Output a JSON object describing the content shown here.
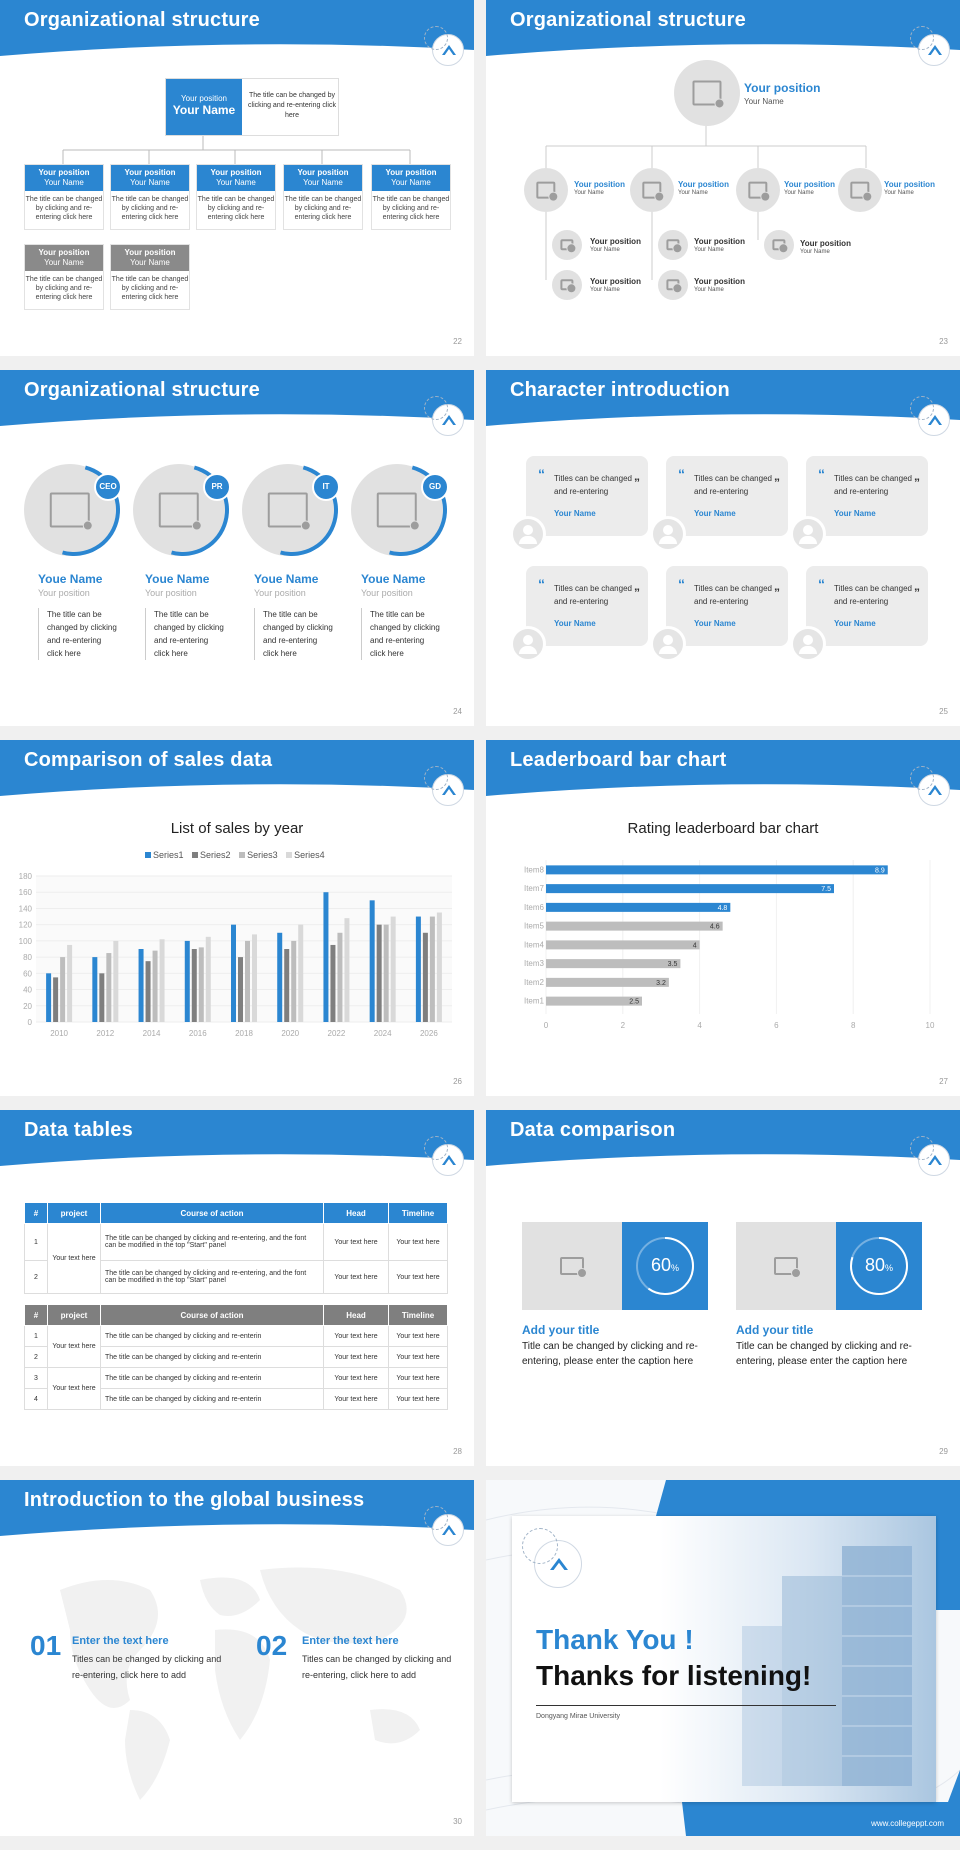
{
  "slides": [
    {
      "title": "Organizational structure",
      "page": "22"
    },
    {
      "title": "Organizational structure",
      "page": "23"
    },
    {
      "title": "Organizational structure",
      "page": "24"
    },
    {
      "title": "Character introduction",
      "page": "25"
    },
    {
      "title": "Comparison of sales data",
      "page": "26"
    },
    {
      "title": "Leaderboard bar chart",
      "page": "27"
    },
    {
      "title": "Data tables",
      "page": "28"
    },
    {
      "title": "Data comparison",
      "page": "29"
    },
    {
      "title": "Introduction to the global business",
      "page": "30"
    }
  ],
  "org1": {
    "top_position": "Your position",
    "top_name": "Your Name",
    "top_desc": "The title can be changed by clicking and re-entering click here",
    "card_position": "Your position",
    "card_name": "Your Name",
    "card_desc": "The title can be changed by clicking and re-entering click here"
  },
  "org2": {
    "position": "Your position",
    "name": "Your Name"
  },
  "org3": {
    "tags": [
      "CEO",
      "PR",
      "IT",
      "GD"
    ],
    "name": "Youe Name",
    "position": "Your position",
    "desc": "The title can be changed by clicking and re-entering click here"
  },
  "characters": {
    "quote": "Titles can be changed and re-entering",
    "name": "Your Name"
  },
  "chart_data": [
    {
      "type": "bar",
      "title": "List of sales by year",
      "categories": [
        "2010",
        "2012",
        "2014",
        "2016",
        "2018",
        "2020",
        "2022",
        "2024",
        "2026"
      ],
      "series": [
        {
          "name": "Series1",
          "color": "#2b86d1",
          "values": [
            60,
            80,
            90,
            100,
            120,
            110,
            160,
            150,
            130
          ]
        },
        {
          "name": "Series2",
          "color": "#7f7f7f",
          "values": [
            55,
            60,
            75,
            90,
            80,
            90,
            95,
            120,
            110
          ]
        },
        {
          "name": "Series3",
          "color": "#bdbdbd",
          "values": [
            80,
            85,
            88,
            92,
            100,
            100,
            110,
            120,
            130
          ]
        },
        {
          "name": "Series4",
          "color": "#d9d9d9",
          "values": [
            95,
            100,
            102,
            105,
            108,
            120,
            128,
            130,
            135
          ]
        }
      ],
      "ylim": [
        0,
        180
      ],
      "yticks": [
        0,
        20,
        40,
        60,
        80,
        100,
        120,
        140,
        160,
        180
      ],
      "legend": "top"
    },
    {
      "type": "bar",
      "orientation": "horizontal",
      "title": "Rating leaderboard bar chart",
      "categories": [
        "Item8",
        "Item7",
        "Item6",
        "Item5",
        "Item4",
        "Item3",
        "Item2",
        "Item1"
      ],
      "values": [
        8.9,
        7.5,
        4.8,
        4.6,
        4,
        3.5,
        3.2,
        2.5
      ],
      "value_labels": [
        "8.9",
        "7.5",
        "4.8",
        "4.6",
        "4",
        "3.5",
        "3.2",
        "2.5"
      ],
      "colors": [
        "#2b86d1",
        "#2b86d1",
        "#2b86d1",
        "#bdbdbd",
        "#bdbdbd",
        "#bdbdbd",
        "#bdbdbd",
        "#bdbdbd"
      ],
      "xlim": [
        0,
        10
      ],
      "xticks": [
        "0",
        "2",
        "4",
        "6",
        "8",
        "10"
      ]
    }
  ],
  "tables": {
    "headers": [
      "#",
      "project",
      "Course of action",
      "Head",
      "Timeline"
    ],
    "t1_rows": [
      {
        "n": "1",
        "project": "Your text here",
        "action": "The title can be changed by clicking and re-entering, and the font can be modified in the top \"Start\" panel",
        "head": "Your text here",
        "time": "Your text here"
      },
      {
        "n": "2",
        "project": "",
        "action": "The title can be changed by clicking and re-entering, and the font can be modified in the top \"Start\" panel",
        "head": "Your text here",
        "time": "Your text here"
      }
    ],
    "t2_rows": [
      {
        "n": "1",
        "project": "Your text here",
        "action": "The title can be changed by clicking and re-enterin",
        "head": "Your text here",
        "time": "Your text here"
      },
      {
        "n": "2",
        "project": "",
        "action": "The title can be changed by clicking and re-enterin",
        "head": "Your text here",
        "time": "Your text here"
      },
      {
        "n": "3",
        "project": "Your text here",
        "action": "The title can be changed by clicking and re-enterin",
        "head": "Your text here",
        "time": "Your text here"
      },
      {
        "n": "4",
        "project": "",
        "action": "The title can be changed by clicking and re-enterin",
        "head": "Your text here",
        "time": "Your text here"
      }
    ]
  },
  "comparison": [
    {
      "percent": 60,
      "percent_label": "60",
      "suffix": "%",
      "title": "Add your title",
      "desc": "Title can be changed by clicking and re-entering, please enter the caption here"
    },
    {
      "percent": 80,
      "percent_label": "80",
      "suffix": "%",
      "title": "Add your title",
      "desc": "Title can be changed by clicking and re-entering, please enter the caption here"
    }
  ],
  "global": [
    {
      "num": "01",
      "title": "Enter the text here",
      "desc": "Titles can be changed by clicking and re-entering, click here to add"
    },
    {
      "num": "02",
      "title": "Enter the text here",
      "desc": "Titles can be changed by clicking and re-entering, click here to add"
    }
  ],
  "thanks": {
    "line1": "Thank You !",
    "line2": "Thanks for listening!",
    "university": "Dongyang Mirae University",
    "url": "www.collegeppt.com"
  },
  "colors": {
    "accent": "#2b86d1",
    "gray": "#8a8a8a"
  }
}
